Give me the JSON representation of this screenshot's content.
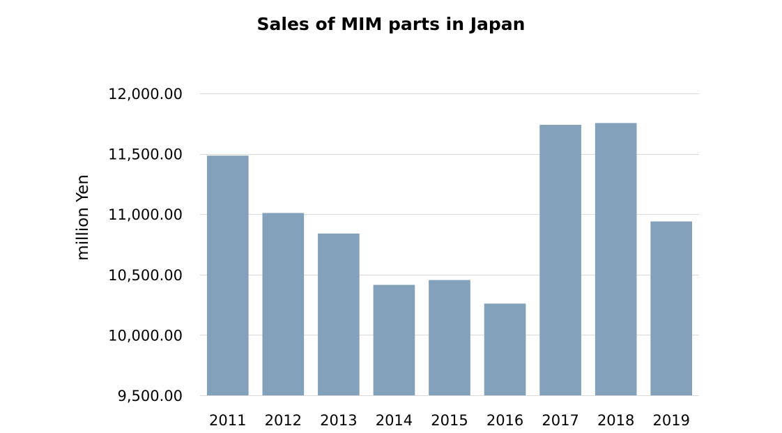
{
  "chart_data": {
    "type": "bar",
    "title": "Sales of MIM parts in Japan",
    "ylabel": "million Yen",
    "xlabel": "",
    "categories": [
      "2011",
      "2012",
      "2013",
      "2014",
      "2015",
      "2016",
      "2017",
      "2018",
      "2019"
    ],
    "values": [
      11485,
      11010,
      10840,
      10415,
      10455,
      10260,
      11740,
      11755,
      10940
    ],
    "ylim": [
      9500,
      12000
    ],
    "yticks": [
      9500,
      10000,
      10500,
      11000,
      11500,
      12000
    ],
    "ytick_labels": [
      "9,500.00",
      "10,000.00",
      "10,500.00",
      "11,000.00",
      "11,500.00",
      "12,000.00"
    ],
    "grid": true,
    "legend": "none",
    "bar_color": "#84a1bc",
    "grid_color": "#d9d9d9"
  }
}
